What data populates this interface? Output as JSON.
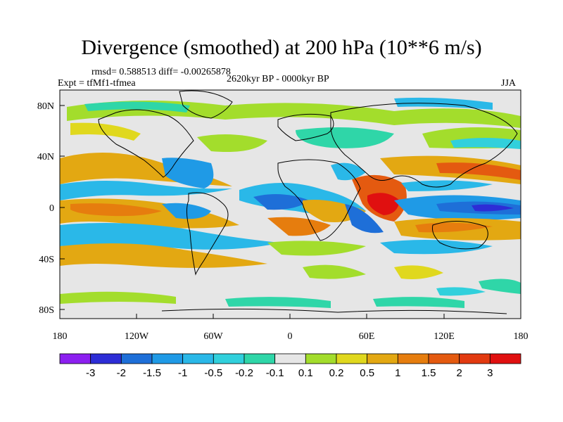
{
  "title": "Divergence (smoothed) at 200 hPa (10**6 m/s)",
  "stats": "rmsd= 0.588513 diff= -0.00265878",
  "experiment": "Expt = tfMf1-tfmea",
  "period": "2620kyr BP - 0000kyr BP",
  "season": "JJA",
  "lat_ticks": [
    "80N",
    "40N",
    "0",
    "40S",
    "80S"
  ],
  "lon_ticks": [
    "180",
    "120W",
    "60W",
    "0",
    "60E",
    "120E",
    "180"
  ],
  "colorbar": {
    "colors": [
      "#8c1ff0",
      "#2d2dd6",
      "#1e6fd8",
      "#1f9ae6",
      "#2ab8e8",
      "#31d0dc",
      "#2fd6a8",
      "#e6e6e6",
      "#a3dd2c",
      "#e0d81e",
      "#e3a812",
      "#e67d0e",
      "#e45a10",
      "#e23a10",
      "#e01010"
    ],
    "labels": [
      "-3",
      "-2",
      "-1.5",
      "-1",
      "-0.5",
      "-0.2",
      "-0.1",
      "0.1",
      "0.2",
      "0.5",
      "1",
      "1.5",
      "2",
      "3"
    ]
  }
}
